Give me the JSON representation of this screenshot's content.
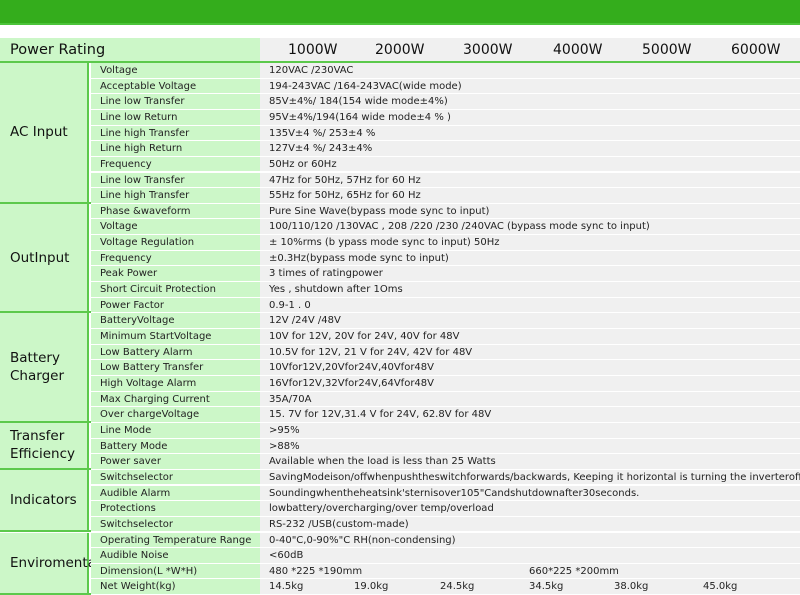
{
  "colors": {
    "accent": "#34ad1c",
    "label_bg": "#ccf7c8",
    "value_bg": "#f0f0f0"
  },
  "header": {
    "label": "Power Rating",
    "ratings": [
      "1000W",
      "2000W",
      "3000W",
      "4000W",
      "5000W",
      "6000W"
    ]
  },
  "groups": [
    {
      "name": "AC Input",
      "rows": [
        {
          "param": "Voltage",
          "value": "120VAC /230VAC"
        },
        {
          "param": "Acceptable Voltage",
          "value": "194-243VAC /164-243VAC(wide mode)"
        },
        {
          "param": "Line low Transfer",
          "value": "85V±4%/ 184(154 wide mode±4%)"
        },
        {
          "param": "Line low Return",
          "value": " 95V±4%/194(164 wide mode±4 % )"
        },
        {
          "param": "Line high Transfer",
          "value": "135V±4 %/ 253±4 %"
        },
        {
          "param": "Line high Return",
          "value": "127V±4 %/ 243±4%"
        },
        {
          "param": "Frequency",
          "value": "50Hz or 60Hz"
        },
        {
          "param": "Line low Transfer",
          "value": "47Hz for 50Hz, 57Hz for 60 Hz"
        },
        {
          "param": "Line high Transfer",
          "value": "55Hz for 50Hz, 65Hz for 60 Hz"
        }
      ]
    },
    {
      "name": "OutInput",
      "rows": [
        {
          "param": "Phase &waveform",
          "value": "Pure Sine Wave(bypass mode sync to input)"
        },
        {
          "param": "Voltage",
          "value": "100/110/120 /130VAC , 208 /220 /230 /240VAC (bypass mode sync to input)"
        },
        {
          "param": "Voltage Regulation",
          "value": "± 10%rms (b ypass mode sync to input) 50Hz"
        },
        {
          "param": "Frequency",
          "value": "±0.3Hz(bypass mode sync to input)"
        },
        {
          "param": "Peak Power",
          "value": "3 times of ratingpower"
        },
        {
          "param": "Short Circuit Protection",
          "value": "Yes , shutdown after 1Oms"
        },
        {
          "param": "Power Factor",
          "value": "0.9-1 . 0"
        }
      ]
    },
    {
      "name": "Battery Charger",
      "rows": [
        {
          "param": "BatteryVoltage",
          "value": "12V /24V /48V"
        },
        {
          "param": "Minimum StartVoltage",
          "value": "10V for 12V, 20V for 24V, 40V for 48V"
        },
        {
          "param": "Low Battery Alarm",
          "value": "10.5V for 12V, 21 V for 24V, 42V for 48V"
        },
        {
          "param": "Low Battery Transfer",
          "value": "10Vfor12V,20Vfor24V,40Vfor48V"
        },
        {
          "param": "High Voltage Alarm",
          "value": "16Vfor12V,32Vfor24V,64Vfor48V"
        },
        {
          "param": "Max Charging Current",
          "value": "35A/70A"
        },
        {
          "param": "Over chargeVoltage",
          "value": "15. 7V for 12V,31.4 V for 24V, 62.8V for 48V"
        }
      ]
    },
    {
      "name": "Transfer Efficiency",
      "rows": [
        {
          "param": "Line Mode",
          "value": ">95%"
        },
        {
          "param": "Battery Mode",
          "value": ">88%"
        },
        {
          "param": "Power saver",
          "value": "Available when the load is less than 25 Watts"
        }
      ]
    },
    {
      "name": "Indicators",
      "rows": [
        {
          "param": "Switchselector",
          "value": "SavingModeison/offwhenpushtheswitchforwards/backwards, Keeping it horizontal is turning the inverteroff."
        },
        {
          "param": "Audible Alarm",
          "value": "Soundingwhentheheatsink'sternisover105\"Candshutdownafter30seconds."
        },
        {
          "param": "Protections",
          "value": "lowbattery/overcharging/over temp/overload"
        },
        {
          "param": "Switchselector",
          "value": "RS-232 /USB(custom-made)"
        }
      ]
    },
    {
      "name": "Enviromental",
      "rows": [
        {
          "param": "Operating Temperature Range",
          "value": "0-40\"C,0-90%\"C RH(non-condensing)"
        },
        {
          "param": "Audible Noise",
          "value": "<60dB"
        },
        {
          "param": "Dimension(L *W*H)",
          "values": [
            "480 *225 *190mm",
            "",
            "",
            "660*225 *200mm",
            "",
            ""
          ]
        },
        {
          "param": "Net Weight(kg)",
          "values": [
            "14.5kg",
            "19.0kg",
            "24.5kg",
            "34.5kg",
            "38.0kg",
            "45.0kg"
          ]
        }
      ]
    }
  ]
}
